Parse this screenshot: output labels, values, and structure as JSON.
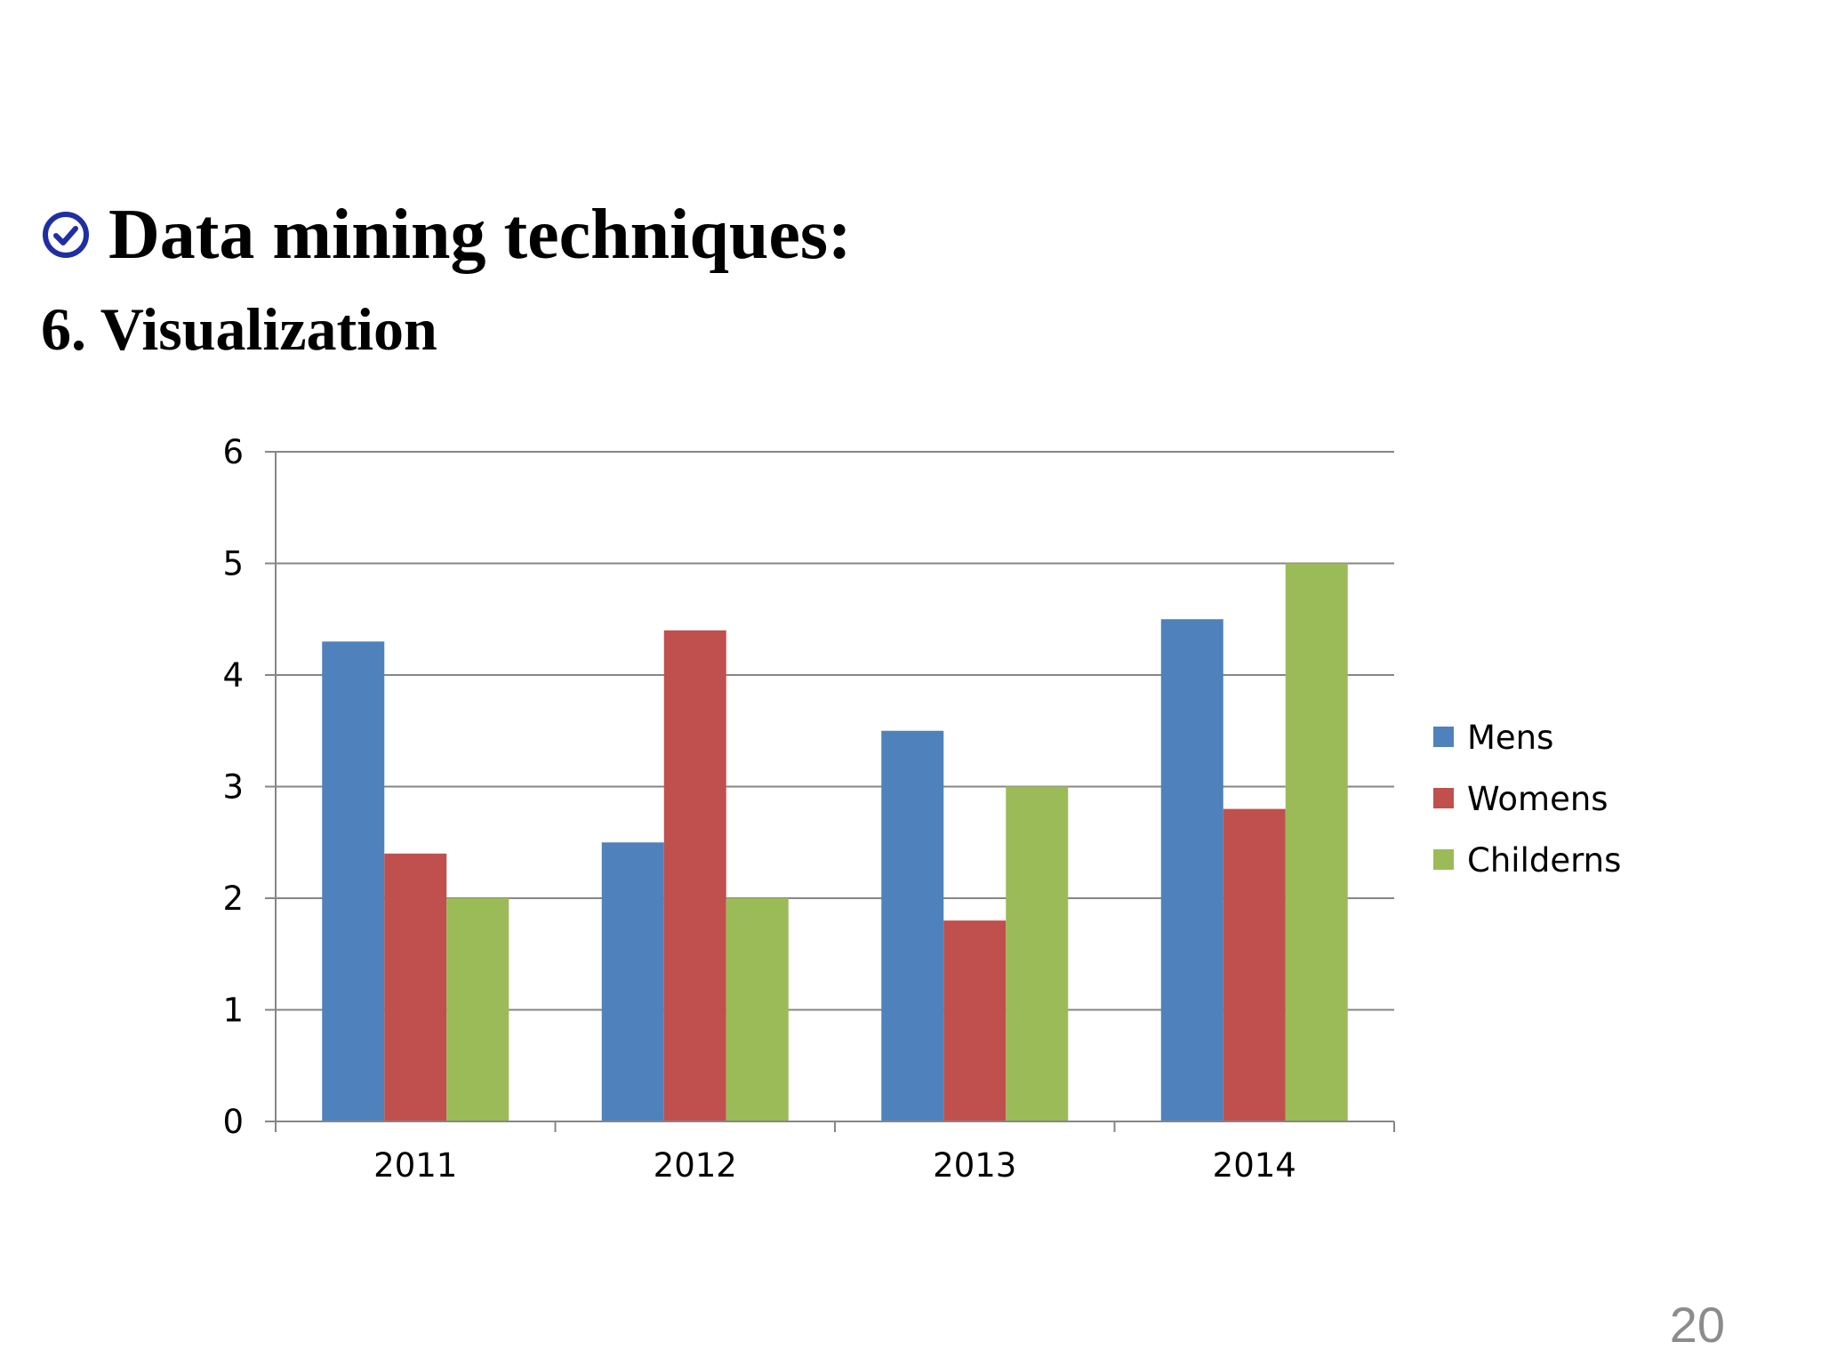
{
  "slide": {
    "title": "Data mining techniques:",
    "subtitle": "6. Visualization",
    "page_number": "20"
  },
  "icons": {
    "title_bullet": "check-circle-icon"
  },
  "colors": {
    "bullet_icon": "#1f2fa3",
    "grid": "#868686",
    "axis": "#868686",
    "tick_text": "#000000"
  },
  "chart_data": {
    "type": "bar",
    "title": "",
    "xlabel": "",
    "ylabel": "",
    "categories": [
      "2011",
      "2012",
      "2013",
      "2014"
    ],
    "ylim": [
      0,
      6
    ],
    "yticks": [
      0,
      1,
      2,
      3,
      4,
      5,
      6
    ],
    "grid": true,
    "legend_position": "right",
    "series": [
      {
        "name": "Mens",
        "color": "#4f81bd",
        "values": [
          4.3,
          2.5,
          3.5,
          4.5
        ]
      },
      {
        "name": "Womens",
        "color": "#c0504d",
        "values": [
          2.4,
          4.4,
          1.8,
          2.8
        ]
      },
      {
        "name": "Childerns",
        "color": "#9bbb59",
        "values": [
          2,
          2,
          3,
          5
        ]
      }
    ]
  }
}
